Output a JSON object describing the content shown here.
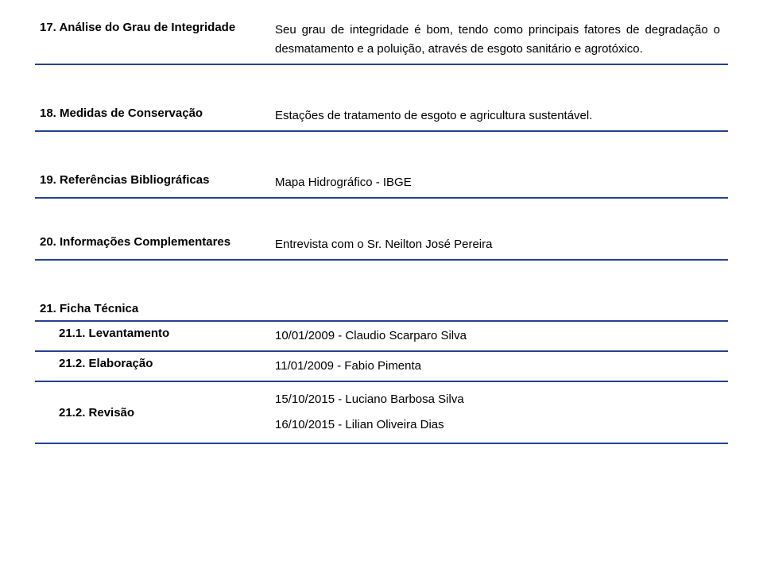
{
  "colors": {
    "divider": "#234293",
    "text": "#000000",
    "background": "#ffffff"
  },
  "sections": {
    "s17": {
      "label": "17. Análise do Grau de Integridade",
      "value": "Seu grau de integridade é bom, tendo como principais fatores de degradação o desmatamento e a poluição, através de esgoto sanitário e agrotóxico."
    },
    "s18": {
      "label": "18. Medidas de Conservação",
      "value": "Estações de tratamento de esgoto e agricultura sustentável."
    },
    "s19": {
      "label": "19. Referências Bibliográficas",
      "value": "Mapa Hidrográfico - IBGE"
    },
    "s20": {
      "label": "20. Informações Complementares",
      "value": "Entrevista com o Sr. Neilton José Pereira"
    },
    "s21": {
      "label": "21. Ficha Técnica"
    },
    "s21_1": {
      "label": "21.1. Levantamento",
      "value": "10/01/2009 - Claudio Scarparo Silva"
    },
    "s21_2": {
      "label": "21.2. Elaboração",
      "value": "11/01/2009 - Fabio Pimenta"
    },
    "s21_rev": {
      "label": "21.2. Revisão",
      "value1": "15/10/2015 - Luciano Barbosa  Silva",
      "value2": "16/10/2015 - Lilian Oliveira Dias"
    }
  }
}
